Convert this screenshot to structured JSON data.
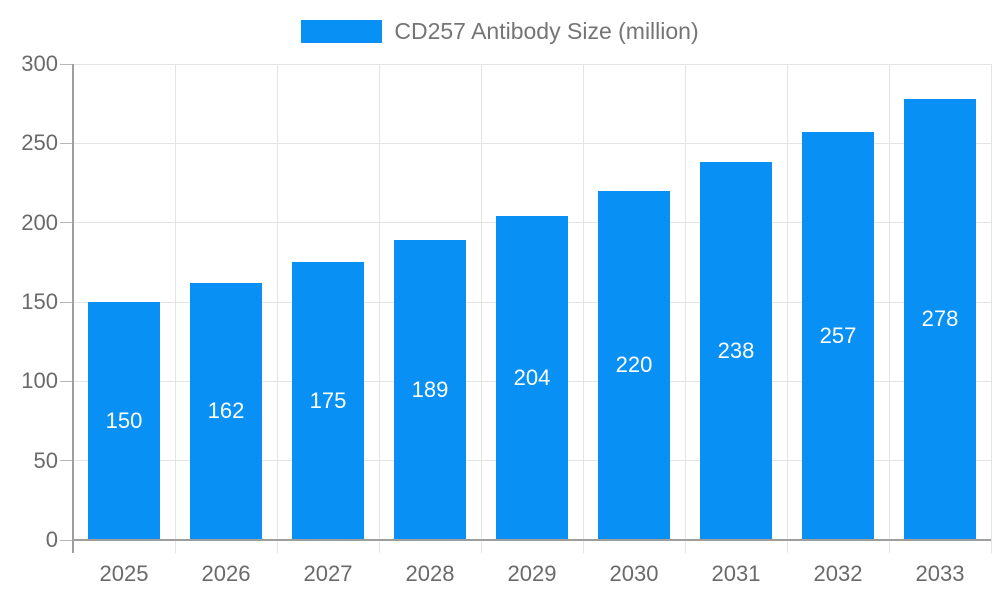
{
  "chart_data": {
    "type": "bar",
    "title": "CD257 Antibody Size (million)",
    "categories": [
      "2025",
      "2026",
      "2027",
      "2028",
      "2029",
      "2030",
      "2031",
      "2032",
      "2033"
    ],
    "values": [
      150,
      162,
      175,
      189,
      204,
      220,
      238,
      257,
      278
    ],
    "xlabel": "",
    "ylabel": "",
    "ylim": [
      0,
      300
    ],
    "yticks": [
      0,
      50,
      100,
      150,
      200,
      250,
      300
    ],
    "grid": true,
    "legend_position": "top-center",
    "bar_labels_visible": true,
    "colors": {
      "bar": "#0890F5",
      "bar_label": "#FFFFFF",
      "grid": "#E4E4E4",
      "axis": "#9E9E9E",
      "tickmark": "#B5B5B5",
      "tick_text": "#6A6A6A",
      "legend_text": "#757575",
      "background": "#FFFFFF"
    }
  }
}
